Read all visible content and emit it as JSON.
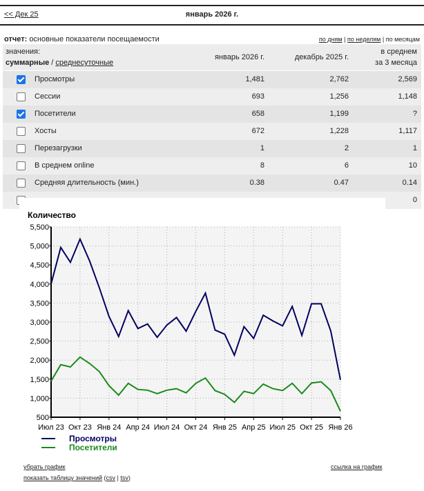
{
  "nav": {
    "prev": "<< Дек 25",
    "current": "январь 2026 г."
  },
  "report": {
    "label": "отчет:",
    "title": "основные показатели посещаемости",
    "periods": [
      "по дням",
      "по неделям",
      "по месяцам"
    ]
  },
  "table": {
    "values_label": "значения:",
    "mode_total": "суммарные",
    "mode_sep": " / ",
    "mode_daily": "среднесуточные",
    "columns": [
      "январь 2026 г.",
      "декабрь 2025 г.",
      "в среднем",
      "за 3 месяца"
    ],
    "rows": [
      {
        "label": "Просмотры",
        "checked": true,
        "v": [
          "1,481",
          "2,762",
          "2,569"
        ]
      },
      {
        "label": "Сессии",
        "checked": false,
        "v": [
          "693",
          "1,256",
          "1,148"
        ]
      },
      {
        "label": "Посетители",
        "checked": true,
        "v": [
          "658",
          "1,199",
          "?"
        ]
      },
      {
        "label": "Хосты",
        "checked": false,
        "v": [
          "672",
          "1,228",
          "1,117"
        ]
      },
      {
        "label": "Перезагрузки",
        "checked": false,
        "v": [
          "1",
          "2",
          "1"
        ]
      },
      {
        "label": "В среднем online",
        "checked": false,
        "v": [
          "8",
          "6",
          "10"
        ]
      },
      {
        "label": "Средняя длительность (мин.)",
        "checked": false,
        "v": [
          "0.38",
          "0.47",
          "0.14"
        ]
      },
      {
        "label": "",
        "checked": false,
        "v": [
          "",
          "",
          "0"
        ]
      }
    ]
  },
  "chart_data": {
    "type": "line",
    "title": "Количество",
    "ylim": [
      500,
      5500
    ],
    "yticks": [
      "500",
      "1,000",
      "1,500",
      "2,000",
      "2,500",
      "3,000",
      "3,500",
      "4,000",
      "4,500",
      "5,000",
      "5,500"
    ],
    "xtick_labels": [
      "Июл 23",
      "Окт 23",
      "Янв 24",
      "Апр 24",
      "Июл 24",
      "Окт 24",
      "Янв 25",
      "Апр 25",
      "Июл 25",
      "Окт 25",
      "Янв 26"
    ],
    "grid": true,
    "legend": "bottom-left",
    "series": [
      {
        "name": "Просмотры",
        "color": "#000060",
        "values": [
          4000,
          4960,
          4570,
          5180,
          4600,
          3900,
          3150,
          2620,
          3300,
          2830,
          2950,
          2600,
          2920,
          3120,
          2760,
          3280,
          3760,
          2790,
          2680,
          2130,
          2880,
          2570,
          3180,
          3030,
          2900,
          3410,
          2650,
          3480,
          3480,
          2762,
          1481
        ]
      },
      {
        "name": "Посетители",
        "color": "#1a8a1a",
        "values": [
          1450,
          1880,
          1820,
          2080,
          1910,
          1700,
          1330,
          1080,
          1390,
          1230,
          1210,
          1120,
          1210,
          1250,
          1140,
          1390,
          1530,
          1200,
          1100,
          890,
          1180,
          1120,
          1370,
          1250,
          1200,
          1390,
          1120,
          1400,
          1430,
          1199,
          658
        ]
      }
    ]
  },
  "footer": {
    "remove": "убрать график",
    "show_table": "показать таблицу значений",
    "open": " (",
    "csv": "csv",
    "sep": " | ",
    "tsv": "tsv",
    "close": ")",
    "link": "ссылка на график"
  }
}
